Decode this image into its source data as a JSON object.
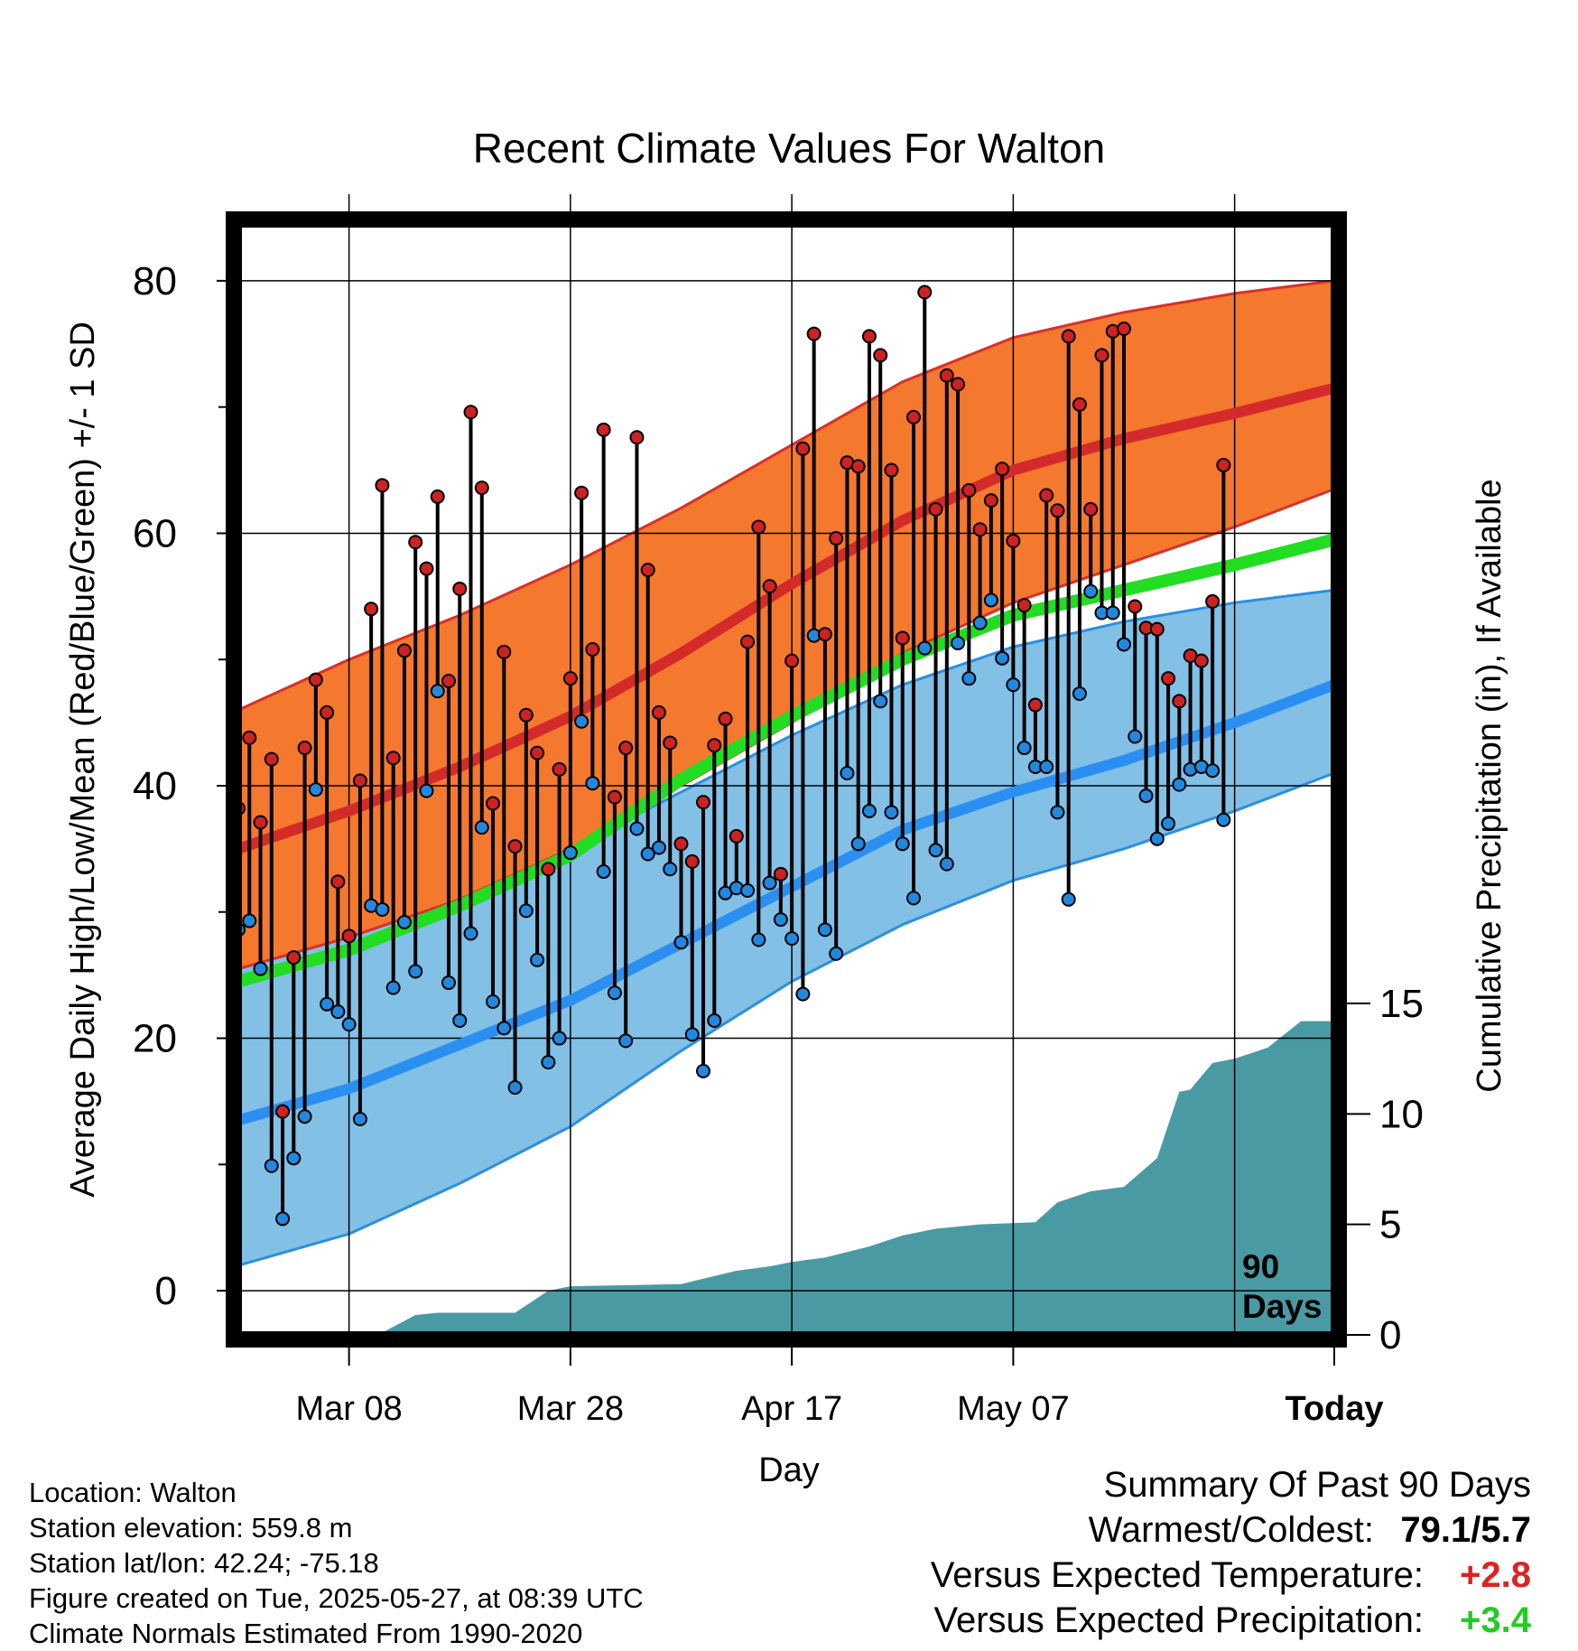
{
  "chart_data": {
    "type": "line",
    "title": "Recent Climate Values For Walton",
    "xlabel": "Day",
    "ylabel": "Average Daily High/Low/Mean (Red/Blue/Green) +/- 1 SD",
    "y2label": "Cumulative Precipitation (in), If Available",
    "xticks": [
      "Mar 08",
      "Mar 28",
      "Apr 17",
      "May 07",
      "Today"
    ],
    "yticks": [
      0,
      20,
      40,
      60,
      80
    ],
    "y2ticks": [
      0,
      5,
      10,
      15
    ],
    "ylim": [
      -3.5,
      84.5
    ],
    "y2lim": [
      0,
      15
    ],
    "xlim": [
      -10,
      89
    ],
    "today_marker_label": "90 Days",
    "grid": true,
    "normals": {
      "x": [
        -10,
        0,
        10,
        20,
        30,
        40,
        50,
        60,
        70,
        80,
        89
      ],
      "high_mean": [
        35,
        38,
        41.5,
        45.5,
        50.5,
        56,
        61,
        65,
        67.5,
        69.5,
        71.5
      ],
      "high_upper": [
        46,
        50,
        53.5,
        57.5,
        62,
        67,
        72,
        75.5,
        77.5,
        79,
        80
      ],
      "high_lower": [
        25.5,
        28,
        31,
        35,
        40,
        45,
        50.5,
        54.5,
        57.5,
        60.5,
        63.5
      ],
      "mean": [
        24.5,
        27,
        30.5,
        34.5,
        40.5,
        45.5,
        50,
        53.5,
        55.5,
        57.5,
        59.5
      ],
      "low_mean": [
        13.5,
        16,
        19.5,
        23,
        27.5,
        32,
        36.5,
        39.5,
        42,
        45,
        48
      ],
      "low_upper": [
        25.5,
        28,
        31,
        35,
        39.5,
        44,
        48,
        51,
        53,
        54.5,
        55.5
      ],
      "low_lower": [
        2,
        4.5,
        8.5,
        13,
        19,
        24.5,
        29,
        32.5,
        35,
        38,
        41
      ]
    },
    "series": [
      {
        "name": "High",
        "color": "#cc2222",
        "values": [
          38.2,
          43.8,
          37.1,
          42.1,
          14.2,
          26.4,
          43.0,
          48.4,
          45.8,
          32.4,
          28.1,
          40.4,
          54.0,
          63.8,
          42.2,
          50.7,
          59.3,
          57.2,
          62.9,
          48.3,
          55.6,
          69.6,
          63.6,
          38.6,
          50.6,
          35.2,
          45.6,
          42.6,
          33.4,
          41.3,
          48.5,
          63.2,
          50.8,
          68.2,
          39.1,
          43.0,
          67.6,
          57.1,
          45.8,
          43.4,
          35.4,
          34.0,
          38.7,
          43.2,
          45.3,
          36.0,
          51.4,
          60.5,
          55.8,
          33.0,
          49.9,
          66.7,
          75.8,
          52.0,
          59.6,
          65.6,
          65.3,
          75.6,
          74.1,
          65.0,
          51.7,
          69.2,
          79.1,
          61.9,
          72.5,
          71.8,
          63.4,
          60.3,
          62.6,
          65.1,
          59.4,
          54.3,
          46.4,
          63.0,
          61.8,
          75.6,
          70.2,
          61.9,
          74.1,
          76.0,
          76.2,
          54.2,
          52.5,
          52.4,
          48.5,
          46.7,
          50.3,
          49.9,
          54.6,
          65.4
        ]
      },
      {
        "name": "Low",
        "color": "#2288dd",
        "values": [
          28.6,
          29.3,
          25.5,
          9.9,
          5.7,
          10.5,
          13.8,
          39.7,
          22.7,
          22.1,
          21.1,
          13.6,
          30.5,
          30.2,
          24.0,
          29.2,
          25.3,
          39.6,
          47.5,
          24.4,
          21.4,
          28.3,
          36.7,
          22.9,
          20.8,
          16.1,
          30.1,
          26.2,
          18.1,
          20.0,
          34.7,
          45.1,
          40.2,
          33.2,
          23.6,
          19.8,
          36.6,
          34.6,
          35.1,
          33.4,
          27.6,
          20.3,
          17.4,
          21.4,
          31.5,
          31.9,
          31.7,
          27.8,
          32.3,
          29.4,
          27.9,
          23.5,
          51.9,
          28.6,
          26.7,
          41.0,
          35.4,
          38.0,
          46.7,
          37.9,
          35.4,
          31.1,
          50.9,
          34.9,
          33.8,
          51.3,
          48.5,
          52.9,
          54.7,
          50.1,
          48.0,
          43.0,
          41.5,
          41.5,
          37.9,
          31.0,
          47.3,
          55.4,
          53.7,
          53.7,
          51.2,
          43.9,
          39.2,
          35.8,
          37.0,
          40.1,
          41.3,
          41.5,
          41.2,
          37.3
        ]
      },
      {
        "name": "Cumulative Precipitation",
        "color": "#4a9aa4",
        "x": [
          -10,
          3,
          6,
          8,
          15,
          18,
          20,
          30,
          35,
          38,
          40,
          43,
          47,
          50,
          53,
          57,
          62,
          64,
          67,
          70,
          73,
          75,
          76,
          78,
          80,
          83,
          86,
          89
        ],
        "values": [
          0,
          0.1,
          0.9,
          1.0,
          1.0,
          2.0,
          2.2,
          2.3,
          2.9,
          3.1,
          3.3,
          3.5,
          4.0,
          4.5,
          4.8,
          5.0,
          5.1,
          6.0,
          6.5,
          6.7,
          8.0,
          11.0,
          11.1,
          12.3,
          12.5,
          13.0,
          14.2,
          14.2
        ]
      }
    ]
  },
  "info": {
    "location": "Location: Walton",
    "elevation": "Station elevation: 559.8 m",
    "latlon": "Station lat/lon: 42.24; -75.18",
    "created": "Figure created on Tue, 2025-05-27, at 08:39 UTC",
    "normals": "Climate Normals Estimated From 1990-2020"
  },
  "summary": {
    "title": "Summary Of Past 90 Days",
    "warmest_coldest_label": "Warmest/Coldest:",
    "warmest_coldest_value": "79.1/5.7",
    "temp_label": "Versus Expected Temperature:",
    "temp_value": "+2.8",
    "temp_color": "#dd2222",
    "precip_label": "Versus Expected Precipitation:",
    "precip_value": "+3.4",
    "precip_color": "#22cc22"
  }
}
